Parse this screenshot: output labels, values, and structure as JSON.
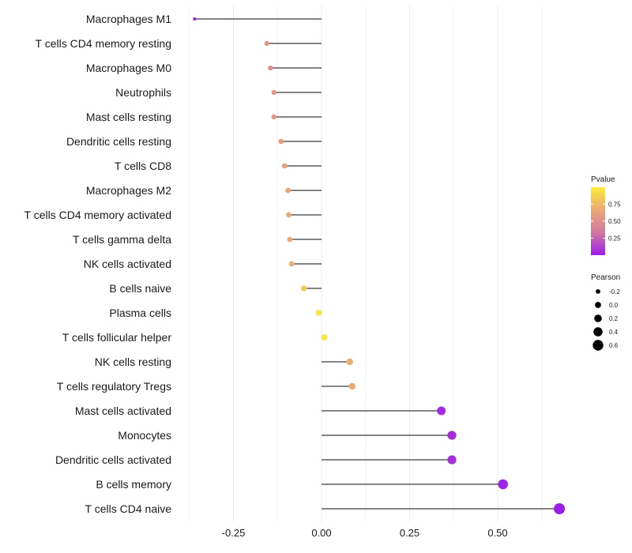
{
  "chart_data": {
    "type": "lollipop",
    "orientation": "horizontal",
    "title": "",
    "xlabel": "",
    "ylabel": "",
    "xlim": [
      -0.38,
      0.72
    ],
    "x_ticks": [
      -0.25,
      0.0,
      0.25,
      0.5
    ],
    "x_tick_labels": [
      "-0.25",
      "0.00",
      "0.25",
      "0.50"
    ],
    "grid": true,
    "categories": [
      "Macrophages M1",
      "T cells CD4 memory resting",
      "Macrophages M0",
      "Neutrophils",
      "Mast cells resting",
      "Dendritic cells resting",
      "T cells CD8",
      "Macrophages M2",
      "T cells CD4 memory activated",
      "T cells gamma delta",
      "NK cells activated",
      "B cells naive",
      "Plasma cells",
      "T cells follicular helper",
      "NK cells resting",
      "T cells regulatory  Tregs ",
      "Mast cells activated",
      "Monocytes",
      "Dendritic cells activated",
      "B cells memory",
      "T cells CD4 naive"
    ],
    "pearson": [
      -0.36,
      -0.155,
      -0.145,
      -0.135,
      -0.135,
      -0.115,
      -0.105,
      -0.095,
      -0.093,
      -0.09,
      -0.085,
      -0.05,
      -0.008,
      0.008,
      0.08,
      0.087,
      0.34,
      0.37,
      0.37,
      0.515,
      0.675
    ],
    "pvalue": [
      0.0,
      0.52,
      0.5,
      0.55,
      0.55,
      0.58,
      0.63,
      0.66,
      0.66,
      0.67,
      0.69,
      0.83,
      0.97,
      0.97,
      0.69,
      0.67,
      0.05,
      0.06,
      0.06,
      0.02,
      0.0
    ],
    "legend": {
      "position": "right",
      "color_title": "Pvalue",
      "color_ticks": [
        0.25,
        0.5,
        0.75
      ],
      "color_tick_labels": [
        "0.25",
        "0.50",
        "0.75"
      ],
      "color_range": [
        0.0,
        1.0
      ],
      "colors": [
        "#9b1de8",
        "#d27aa0",
        "#eaa876",
        "#fdea3a"
      ],
      "size_title": "Pearson",
      "size_values": [
        -0.2,
        0.0,
        0.2,
        0.4,
        0.6
      ],
      "size_labels": [
        "-0.2",
        "0.0",
        "0.2",
        "0.4",
        "0.6"
      ]
    }
  }
}
